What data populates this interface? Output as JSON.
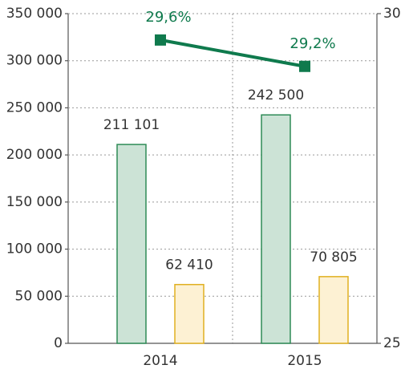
{
  "chart_data": {
    "type": "bar",
    "categories": [
      "2014",
      "2015"
    ],
    "series": [
      {
        "color": "#2e8b57",
        "fill": "#cce3d6",
        "values": [
          211101,
          242500
        ],
        "value_labels": [
          "211 101",
          "242 500"
        ]
      },
      {
        "color": "#e0b020",
        "fill": "#fdf1d3",
        "values": [
          62410,
          70805
        ],
        "value_labels": [
          "62 410",
          "70 805"
        ]
      },
      {
        "type": "line",
        "axis": "y2",
        "color": "#0f7a4d",
        "values": [
          29.6,
          29.2
        ],
        "value_labels": [
          "29,6%",
          "29,2%"
        ]
      }
    ],
    "ylim": [
      0,
      350000
    ],
    "yticks": [
      0,
      {
        "value": 50000,
        "label": "50 000"
      },
      {
        "value": 100000,
        "label": "100 000"
      },
      {
        "value": 150000,
        "label": "150 000"
      },
      {
        "value": 200000,
        "label": "200 000"
      },
      {
        "value": 250000,
        "label": "250 000"
      },
      {
        "value": 300000,
        "label": "300 000"
      },
      {
        "value": 350000,
        "label": "350 000"
      }
    ],
    "y2lim": [
      25,
      30
    ],
    "y2ticks": [
      25,
      30
    ],
    "grid": true
  }
}
